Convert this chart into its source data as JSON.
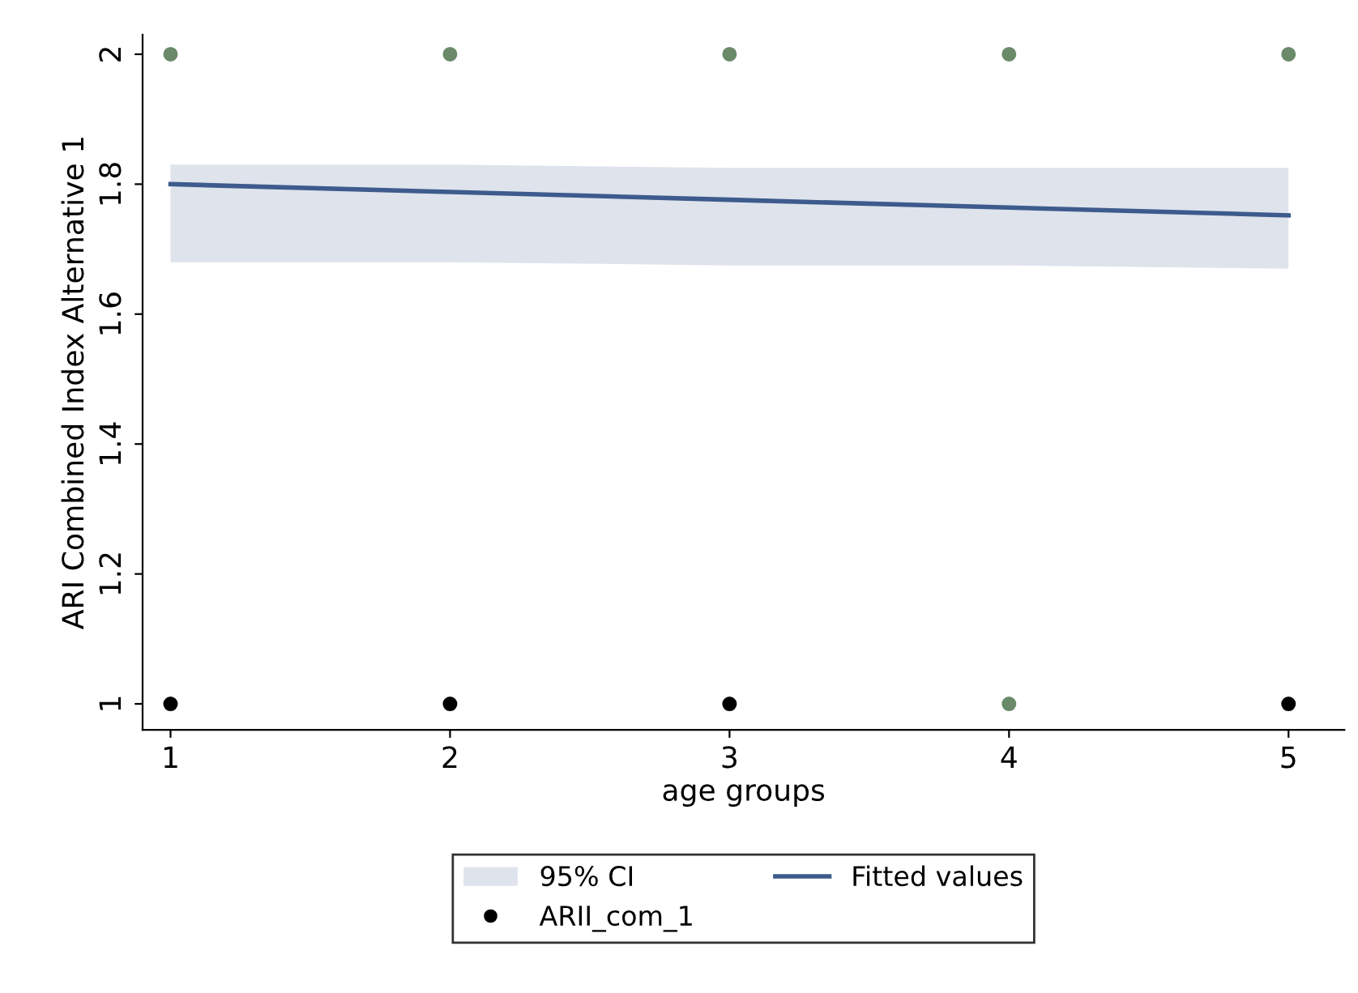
{
  "chart_data": {
    "type": "line",
    "xlabel": "age groups",
    "ylabel": "ARI Combined Index Alternative 1",
    "xlim": [
      0.9,
      5.2
    ],
    "ylim": [
      0.96,
      2.03
    ],
    "xticks": [
      1,
      2,
      3,
      4,
      5
    ],
    "yticks": [
      1,
      1.2,
      1.4,
      1.6,
      1.8,
      2
    ],
    "grid": false,
    "legend": "bottom",
    "annotations": [
      "95% CI"
    ],
    "series": [
      {
        "name": "Fitted values",
        "color": "#3d5b8c",
        "x": [
          1,
          2,
          3,
          4,
          5
        ],
        "values": [
          1.8,
          1.788,
          1.776,
          1.764,
          1.752
        ],
        "lower": [
          1.68,
          1.68,
          1.675,
          1.675,
          1.67
        ],
        "upper": [
          1.83,
          1.83,
          1.825,
          1.825,
          1.825
        ]
      },
      {
        "name": "ARII_com_1",
        "type": "scatter",
        "color": "#000000",
        "marker": "circle",
        "x": [
          1,
          2,
          3,
          4,
          5,
          1,
          2,
          3,
          4,
          5
        ],
        "values": [
          2,
          2,
          2,
          2,
          2,
          1,
          1,
          1,
          1,
          1
        ],
        "colors": [
          "#6a8a6a",
          "#6a8a6a",
          "#6a8a6a",
          "#6a8a6a",
          "#6a8a6a",
          "#000000",
          "#000000",
          "#000000",
          "#6a8a6a",
          "#000000"
        ]
      }
    ]
  }
}
